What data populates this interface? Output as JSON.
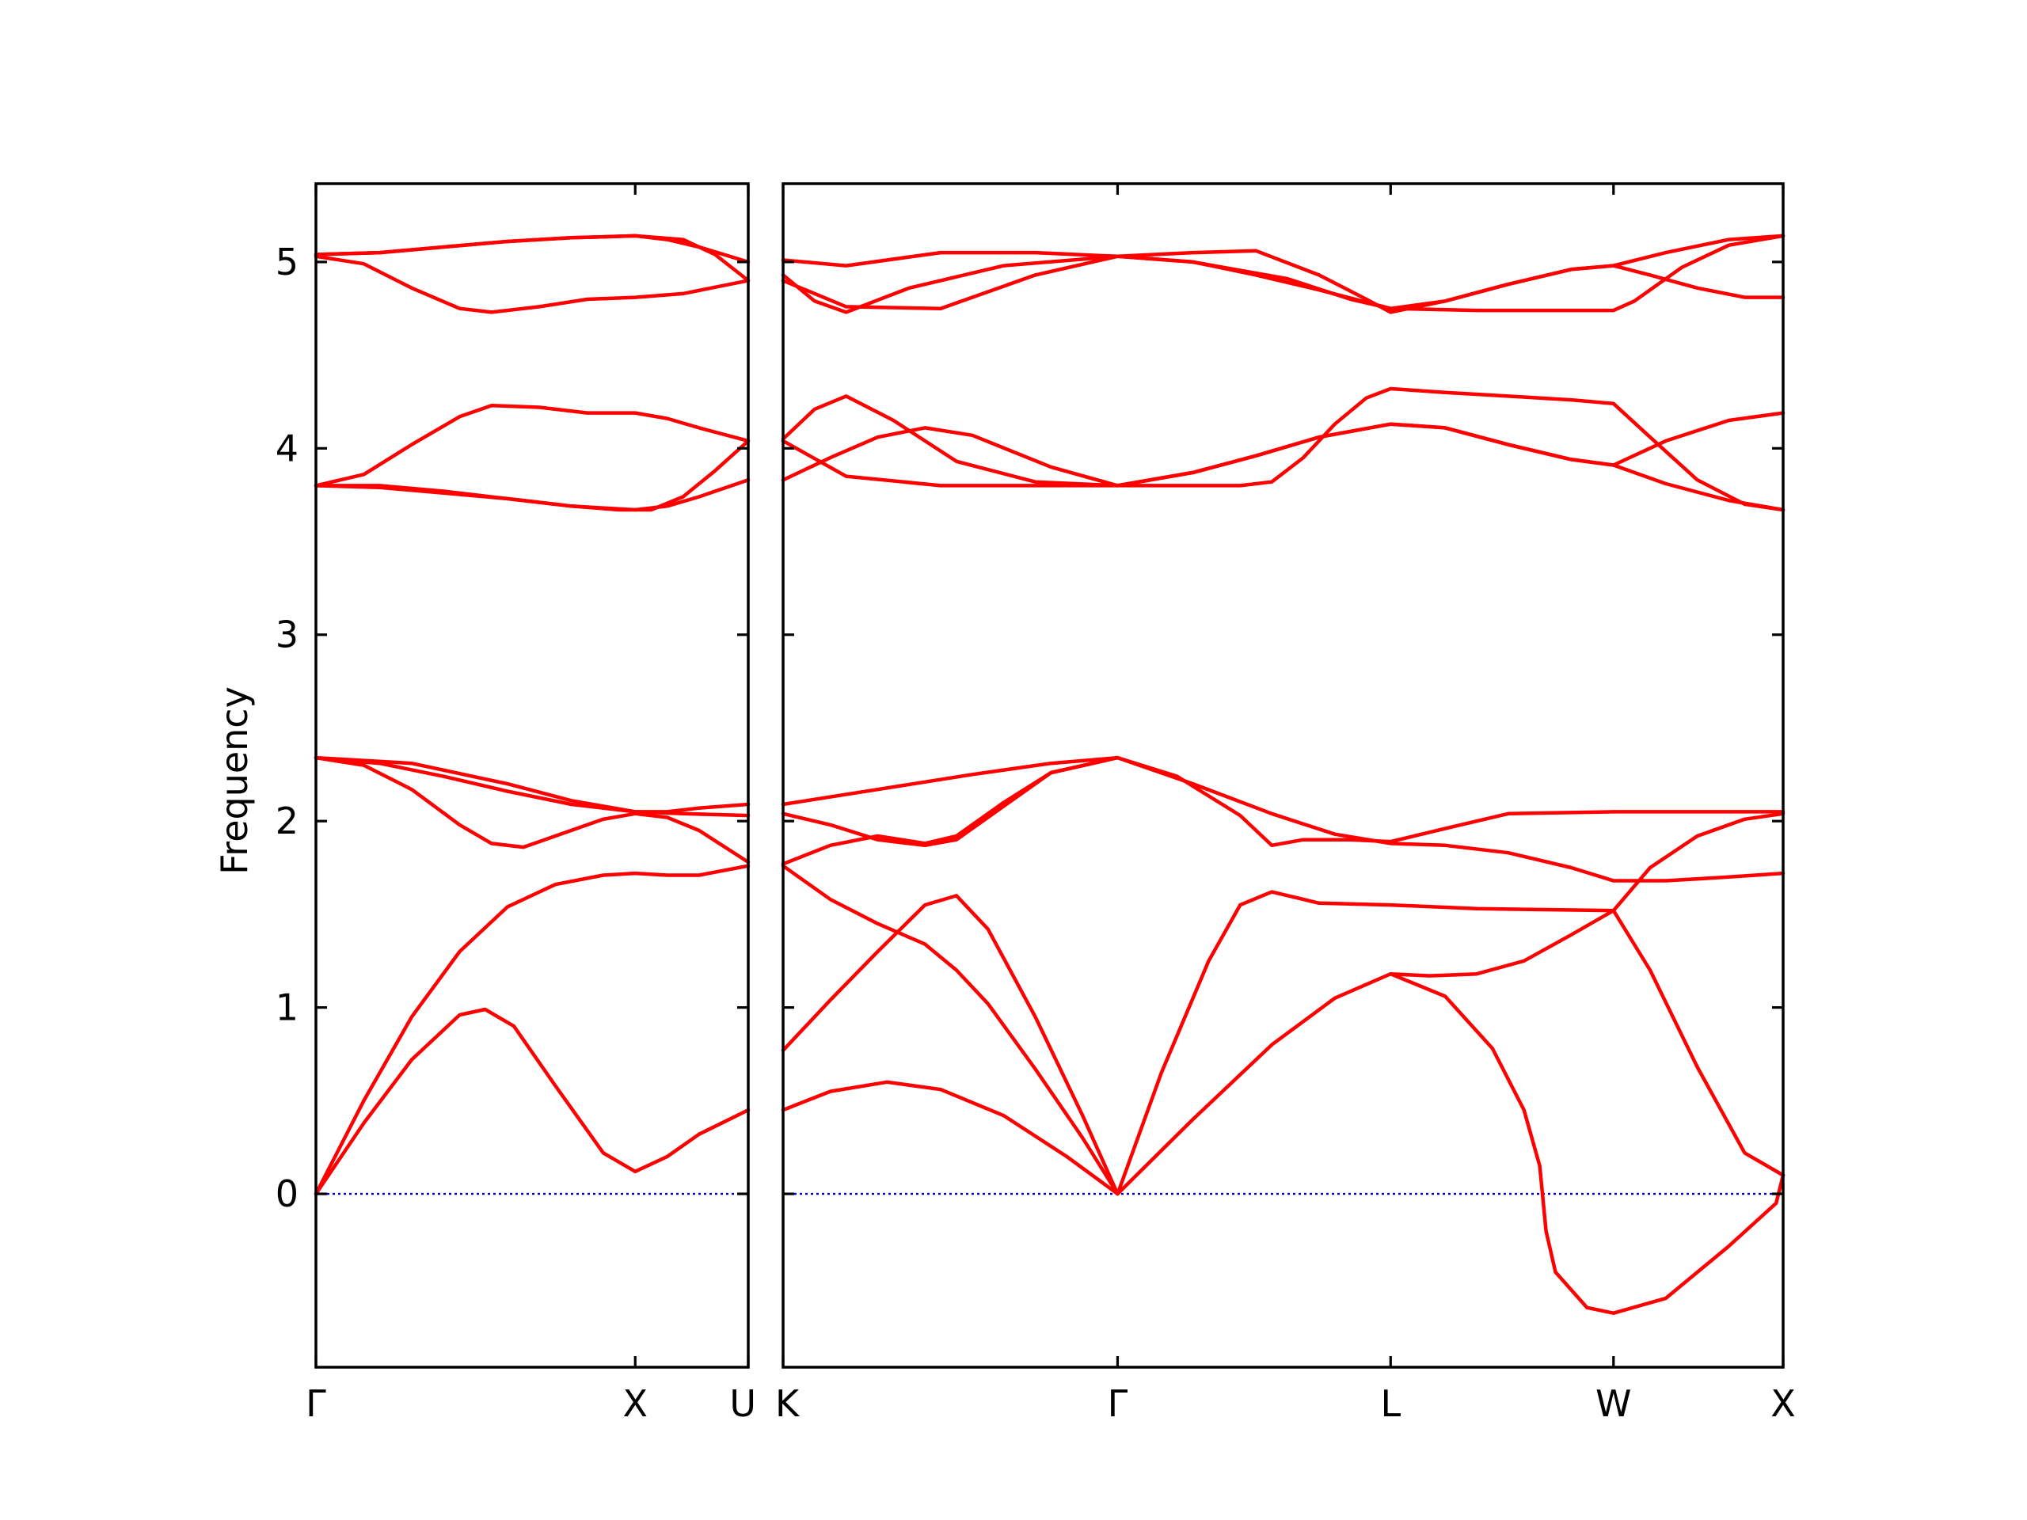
{
  "chart_data": {
    "type": "line",
    "ylabel": "Frequency",
    "ylim": [
      -0.93,
      5.42
    ],
    "yticks": [
      0,
      1,
      2,
      3,
      4,
      5
    ],
    "xlabel_markers": [
      "Γ",
      "X",
      "U",
      "K",
      "Γ",
      "L",
      "W",
      "X"
    ],
    "band_color": "#ff0000",
    "zero_line_color": "#0000cc",
    "grid": false,
    "panels": [
      {
        "name": "left",
        "path": [
          "Γ",
          "X",
          "U"
        ],
        "xlim": [
          0,
          1.354
        ],
        "high_symmetry_points": [
          {
            "label": "Γ",
            "x": 0
          },
          {
            "label": "X",
            "x": 1.0
          },
          {
            "label": "U",
            "x": 1.354
          }
        ],
        "series": [
          {
            "x": [
              0,
              0.15,
              0.3,
              0.45,
              0.53,
              0.62,
              0.75,
              0.9,
              1.0,
              1.1,
              1.2,
              1.354
            ],
            "y": [
              0,
              0.38,
              0.72,
              0.96,
              0.99,
              0.9,
              0.58,
              0.22,
              0.12,
              0.2,
              0.32,
              0.45
            ]
          },
          {
            "x": [
              0,
              0.15,
              0.3,
              0.45,
              0.6,
              0.75,
              0.9,
              1.0,
              1.1,
              1.2,
              1.354
            ],
            "y": [
              0,
              0.5,
              0.95,
              1.3,
              1.54,
              1.66,
              1.71,
              1.72,
              1.71,
              1.71,
              1.76
            ]
          },
          {
            "x": [
              0,
              0.15,
              0.3,
              0.45,
              0.55,
              0.65,
              0.75,
              0.9,
              1.0,
              1.1,
              1.2,
              1.354
            ],
            "y": [
              2.34,
              2.3,
              2.17,
              1.98,
              1.88,
              1.86,
              1.92,
              2.01,
              2.04,
              2.02,
              1.95,
              1.78
            ]
          },
          {
            "x": [
              0,
              0.2,
              0.4,
              0.6,
              0.8,
              1.0,
              1.15,
              1.354
            ],
            "y": [
              2.34,
              2.31,
              2.24,
              2.16,
              2.09,
              2.05,
              2.04,
              2.03
            ]
          },
          {
            "x": [
              0,
              0.3,
              0.6,
              0.8,
              1.0,
              1.1,
              1.2,
              1.354
            ],
            "y": [
              2.34,
              2.31,
              2.2,
              2.11,
              2.05,
              2.05,
              2.07,
              2.09
            ]
          },
          {
            "x": [
              0,
              0.2,
              0.4,
              0.6,
              0.8,
              1.0,
              1.1,
              1.2,
              1.354
            ],
            "y": [
              3.8,
              3.8,
              3.77,
              3.73,
              3.69,
              3.67,
              3.69,
              3.74,
              3.83
            ]
          },
          {
            "x": [
              0,
              0.15,
              0.3,
              0.45,
              0.55,
              0.7,
              0.85,
              1.0,
              1.1,
              1.2,
              1.354
            ],
            "y": [
              3.8,
              3.86,
              4.02,
              4.17,
              4.23,
              4.22,
              4.19,
              4.19,
              4.16,
              4.11,
              4.04
            ]
          },
          {
            "x": [
              0,
              0.2,
              0.4,
              0.6,
              0.8,
              0.95,
              1.05,
              1.15,
              1.25,
              1.354
            ],
            "y": [
              3.8,
              3.79,
              3.76,
              3.73,
              3.69,
              3.67,
              3.67,
              3.74,
              3.88,
              4.04
            ]
          },
          {
            "x": [
              0,
              0.15,
              0.3,
              0.45,
              0.55,
              0.7,
              0.85,
              1.0,
              1.15,
              1.354
            ],
            "y": [
              5.03,
              4.99,
              4.86,
              4.75,
              4.73,
              4.76,
              4.8,
              4.81,
              4.83,
              4.9
            ]
          },
          {
            "x": [
              0,
              0.2,
              0.4,
              0.6,
              0.8,
              1.0,
              1.15,
              1.25,
              1.354
            ],
            "y": [
              5.04,
              5.05,
              5.08,
              5.11,
              5.13,
              5.14,
              5.12,
              5.04,
              4.9
            ]
          },
          {
            "x": [
              0,
              0.2,
              0.4,
              0.6,
              0.8,
              1.0,
              1.1,
              1.2,
              1.354
            ],
            "y": [
              5.04,
              5.05,
              5.08,
              5.11,
              5.13,
              5.14,
              5.12,
              5.08,
              5.0
            ]
          }
        ]
      },
      {
        "name": "right",
        "path": [
          "K",
          "Γ",
          "L",
          "W",
          "X"
        ],
        "xlim": [
          0,
          3.172
        ],
        "high_symmetry_points": [
          {
            "label": "K",
            "x": 0
          },
          {
            "label": "Γ",
            "x": 1.061
          },
          {
            "label": "L",
            "x": 1.927
          },
          {
            "label": "W",
            "x": 2.634
          },
          {
            "label": "X",
            "x": 3.172
          }
        ],
        "series": [
          {
            "x": [
              0,
              0.15,
              0.33,
              0.5,
              0.7,
              0.9,
              1.061
            ],
            "y": [
              0.45,
              0.55,
              0.6,
              0.56,
              0.42,
              0.2,
              0
            ]
          },
          {
            "x": [
              0,
              0.15,
              0.3,
              0.45,
              0.55,
              0.65,
              0.8,
              0.95,
              1.061
            ],
            "y": [
              1.76,
              1.58,
              1.45,
              1.34,
              1.2,
              1.02,
              0.67,
              0.3,
              0
            ]
          },
          {
            "x": [
              0,
              0.15,
              0.3,
              0.45,
              0.55,
              0.65,
              0.8,
              0.95,
              1.061
            ],
            "y": [
              0.77,
              1.04,
              1.3,
              1.55,
              1.6,
              1.42,
              0.95,
              0.42,
              0
            ]
          },
          {
            "x": [
              1.061,
              1.3,
              1.55,
              1.75,
              1.927,
              2.05,
              2.2,
              2.35,
              2.5,
              2.634
            ],
            "y": [
              0,
              0.4,
              0.8,
              1.05,
              1.18,
              1.17,
              1.18,
              1.25,
              1.39,
              1.52
            ]
          },
          {
            "x": [
              1.061,
              1.2,
              1.35,
              1.45,
              1.55,
              1.7,
              1.927,
              2.2,
              2.634
            ],
            "y": [
              0,
              0.65,
              1.25,
              1.55,
              1.62,
              1.56,
              1.55,
              1.53,
              1.52
            ]
          },
          {
            "x": [
              1.927,
              2.1,
              2.25,
              2.35,
              2.4,
              2.42,
              2.45,
              2.55,
              2.634,
              2.8,
              3.0,
              3.15,
              3.172
            ],
            "y": [
              1.18,
              1.06,
              0.78,
              0.45,
              0.15,
              -0.2,
              -0.42,
              -0.61,
              -0.64,
              -0.56,
              -0.28,
              -0.05,
              0.1
            ]
          },
          {
            "x": [
              2.634,
              2.75,
              2.9,
              3.05,
              3.172
            ],
            "y": [
              1.52,
              1.2,
              0.68,
              0.22,
              0.1
            ]
          },
          {
            "x": [
              2.634,
              2.75,
              2.9,
              3.05,
              3.172
            ],
            "y": [
              1.52,
              1.75,
              1.92,
              2.01,
              2.04
            ]
          },
          {
            "x": [
              0,
              0.15,
              0.3,
              0.45,
              0.55,
              0.7,
              0.85,
              1.061
            ],
            "y": [
              1.77,
              1.87,
              1.92,
              1.88,
              1.92,
              2.1,
              2.26,
              2.34
            ]
          },
          {
            "x": [
              0,
              0.15,
              0.3,
              0.45,
              0.55,
              0.7,
              0.85,
              1.061
            ],
            "y": [
              2.04,
              1.98,
              1.9,
              1.87,
              1.9,
              2.08,
              2.26,
              2.34
            ]
          },
          {
            "x": [
              0,
              0.3,
              0.6,
              0.85,
              1.061
            ],
            "y": [
              2.09,
              2.17,
              2.25,
              2.31,
              2.34
            ]
          },
          {
            "x": [
              1.061,
              1.25,
              1.45,
              1.55,
              1.65,
              1.8,
              1.927,
              2.1,
              2.3,
              2.634,
              3.172
            ],
            "y": [
              2.34,
              2.24,
              2.03,
              1.87,
              1.9,
              1.9,
              1.89,
              1.96,
              2.04,
              2.05,
              2.05
            ]
          },
          {
            "x": [
              1.061,
              1.3,
              1.55,
              1.75,
              1.927,
              2.1,
              2.3,
              2.5,
              2.634,
              2.8,
              3.0,
              3.172
            ],
            "y": [
              2.34,
              2.2,
              2.04,
              1.93,
              1.88,
              1.87,
              1.83,
              1.75,
              1.68,
              1.68,
              1.7,
              1.72
            ]
          },
          {
            "x": [
              0,
              0.15,
              0.3,
              0.45,
              0.6,
              0.85,
              1.061,
              1.3,
              1.5,
              1.7,
              1.927,
              2.1,
              2.3,
              2.5,
              2.634,
              2.8,
              3.0,
              3.172
            ],
            "y": [
              3.83,
              3.95,
              4.06,
              4.11,
              4.07,
              3.9,
              3.8,
              3.87,
              3.96,
              4.06,
              4.13,
              4.11,
              4.02,
              3.94,
              3.91,
              3.81,
              3.72,
              3.67
            ]
          },
          {
            "x": [
              0,
              0.1,
              0.2,
              0.35,
              0.55,
              0.8,
              1.061,
              1.3,
              1.5,
              1.7,
              1.927,
              2.1,
              2.3,
              2.5,
              2.634,
              2.8,
              3.0,
              3.172
            ],
            "y": [
              4.05,
              4.21,
              4.28,
              4.15,
              3.93,
              3.82,
              3.8,
              3.87,
              3.96,
              4.06,
              4.13,
              4.11,
              4.02,
              3.94,
              3.91,
              4.04,
              4.15,
              4.19
            ]
          },
          {
            "x": [
              0,
              0.2,
              0.5,
              0.8,
              1.061,
              1.3,
              1.45,
              1.55,
              1.65,
              1.75,
              1.85,
              1.927,
              2.1,
              2.3,
              2.5,
              2.634,
              2.75,
              2.9,
              3.05,
              3.172
            ],
            "y": [
              4.04,
              3.85,
              3.8,
              3.8,
              3.8,
              3.8,
              3.8,
              3.82,
              3.95,
              4.13,
              4.27,
              4.32,
              4.3,
              4.28,
              4.26,
              4.24,
              4.06,
              3.83,
              3.7,
              3.67
            ]
          },
          {
            "x": [
              0,
              0.1,
              0.2,
              0.4,
              0.7,
              1.061,
              1.3,
              1.5,
              1.7,
              1.85,
              1.927,
              2.1,
              2.3,
              2.5,
              2.634,
              2.75,
              2.9,
              3.05,
              3.172
            ],
            "y": [
              4.93,
              4.79,
              4.73,
              4.86,
              4.98,
              5.03,
              5.05,
              5.06,
              4.93,
              4.8,
              4.73,
              4.79,
              4.88,
              4.96,
              4.98,
              4.93,
              4.86,
              4.81,
              4.81
            ]
          },
          {
            "x": [
              0,
              0.2,
              0.5,
              0.8,
              1.061,
              1.3,
              1.5,
              1.7,
              1.927,
              2.1,
              2.3,
              2.5,
              2.634,
              2.8,
              3.0,
              3.172
            ],
            "y": [
              4.9,
              4.76,
              4.75,
              4.93,
              5.03,
              5.0,
              4.93,
              4.85,
              4.75,
              4.79,
              4.88,
              4.96,
              4.98,
              5.05,
              5.12,
              5.14
            ]
          },
          {
            "x": [
              0,
              0.2,
              0.5,
              0.8,
              1.061,
              1.3,
              1.6,
              1.8,
              1.927,
              2.2,
              2.634,
              2.7,
              2.85,
              3.0,
              3.172
            ],
            "y": [
              5.01,
              4.98,
              5.05,
              5.05,
              5.03,
              5.0,
              4.91,
              4.8,
              4.75,
              4.74,
              4.74,
              4.79,
              4.97,
              5.09,
              5.14
            ]
          }
        ]
      }
    ]
  }
}
